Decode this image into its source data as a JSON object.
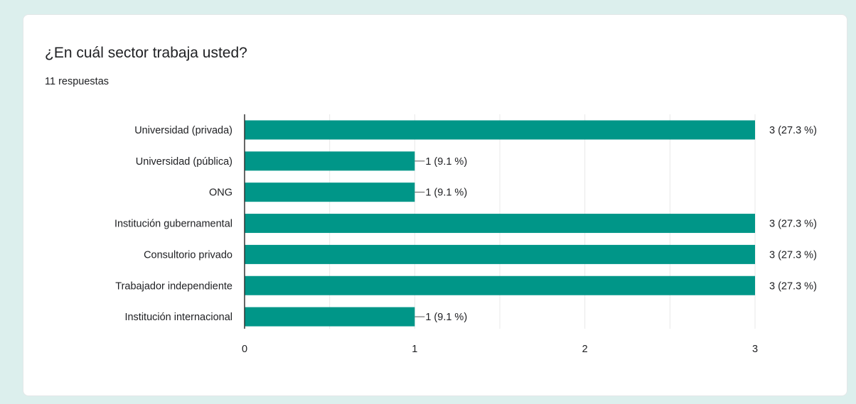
{
  "question": {
    "title": "¿En cuál sector trabaja usted?",
    "responses": "11 respuestas"
  },
  "colors": {
    "bar": "#009688",
    "background": "#dcefed",
    "card": "#ffffff",
    "text": "#202124",
    "grid": "#e8e8e8"
  },
  "chart_data": {
    "type": "bar",
    "orientation": "horizontal",
    "title": "¿En cuál sector trabaja usted?",
    "categories": [
      "Universidad (privada)",
      "Universidad (pública)",
      "ONG",
      "Institución gubernamental",
      "Consultorio privado",
      "Trabajador independiente",
      "Institución internacional"
    ],
    "values": [
      3,
      1,
      1,
      3,
      3,
      3,
      1
    ],
    "data_labels": [
      "3 (27.3 %)",
      "1 (9.1 %)",
      "1 (9.1 %)",
      "3 (27.3 %)",
      "3 (27.3 %)",
      "3 (27.3 %)",
      "1 (9.1 %)"
    ],
    "xlim": [
      0,
      3
    ],
    "x_ticks": [
      0,
      1,
      2,
      3
    ],
    "grid": true,
    "xlabel": "",
    "ylabel": ""
  }
}
